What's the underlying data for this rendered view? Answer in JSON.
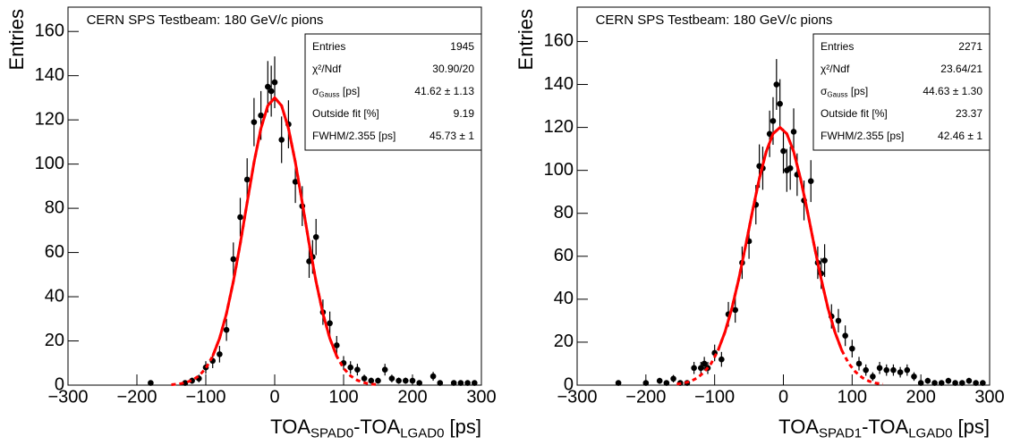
{
  "chart_data": [
    {
      "type": "scatter",
      "title": "CERN SPS Testbeam: 180 GeV/c pions",
      "xlabel": [
        "TOA",
        "SPAD0",
        "-TOA",
        "LGAD0",
        " [ps]"
      ],
      "ylabel": "Entries",
      "xlim": [
        -300,
        300
      ],
      "ylim": [
        0,
        171
      ],
      "xticks": [
        {
          "value": -300,
          "label": "−300"
        },
        {
          "value": -200,
          "label": "−200"
        },
        {
          "value": -100,
          "label": "−100"
        },
        0,
        100,
        200,
        300
      ],
      "yticks": [
        0,
        20,
        40,
        60,
        80,
        100,
        120,
        140,
        160
      ],
      "series": [
        {
          "type": "scatter",
          "color": "#000000",
          "x": [
            -180,
            -130,
            -120,
            -110,
            -100,
            -90,
            -80,
            -70,
            -60,
            -50,
            -40,
            -30,
            -20,
            -10,
            -5,
            0,
            10,
            20,
            30,
            40,
            50,
            55,
            60,
            70,
            80,
            90,
            100,
            110,
            120,
            130,
            140,
            150,
            160,
            170,
            180,
            190,
            200,
            210,
            230,
            240,
            260,
            270,
            280,
            290
          ],
          "values": [
            1,
            1,
            2,
            3,
            8,
            11,
            14,
            25,
            57,
            76,
            93,
            119,
            122,
            135,
            133,
            137,
            111,
            118,
            92,
            81,
            56,
            58,
            67,
            33,
            28,
            18,
            10,
            8,
            7,
            3,
            2,
            2,
            7,
            3,
            2,
            2,
            2,
            1,
            4,
            1,
            1,
            1,
            1,
            1
          ]
        },
        {
          "type": "line",
          "color": "#ff0000",
          "style": "dashed",
          "x": [
            -150,
            -140,
            -130,
            -120,
            -110,
            -100,
            -90,
            -80,
            -70,
            -60,
            -50,
            -40,
            -30,
            -20,
            -10,
            0,
            10,
            20,
            30,
            40,
            50,
            60,
            70,
            80,
            90,
            100,
            110,
            120,
            130,
            140,
            150
          ],
          "values": [
            0.2,
            0.5,
            1.1,
            2.2,
            4.2,
            7.6,
            13.1,
            21.2,
            32.4,
            46.9,
            64.0,
            82.6,
            100.8,
            116.1,
            126.4,
            130,
            126.4,
            116.1,
            100.8,
            82.6,
            64.0,
            46.9,
            32.4,
            21.2,
            13.1,
            7.6,
            4.2,
            2.2,
            1.1,
            0.5,
            0.2
          ]
        },
        {
          "type": "line",
          "color": "#ff0000",
          "style": "solid",
          "x": [
            -90,
            -80,
            -70,
            -60,
            -50,
            -40,
            -30,
            -20,
            -10,
            0,
            10,
            20,
            30,
            40,
            50,
            60,
            70,
            80,
            90
          ],
          "values": [
            13.1,
            21.2,
            32.4,
            46.9,
            64.0,
            82.6,
            100.8,
            116.1,
            126.4,
            130,
            126.4,
            116.1,
            100.8,
            82.6,
            64.0,
            46.9,
            32.4,
            21.2,
            13.1
          ]
        }
      ],
      "stats": [
        {
          "label": "Entries",
          "value": 1945
        },
        {
          "label": "χ²/Ndf",
          "value": "30.90/20"
        },
        {
          "label": [
            "σ",
            "Gauss",
            " [ps]"
          ],
          "value": "41.62 ± 1.13"
        },
        {
          "label": "Outside fit [%]",
          "value": 9.19
        },
        {
          "label": "FWHM/2.355 [ps]",
          "value": "45.73 ± 1"
        }
      ]
    },
    {
      "type": "scatter",
      "title": "CERN SPS Testbeam: 180 GeV/c pions",
      "xlabel": [
        "TOA",
        "SPAD1",
        "-TOA",
        "LGAD0",
        " [ps]"
      ],
      "ylabel": "Entries",
      "xlim": [
        -300,
        300
      ],
      "ylim": [
        0,
        176
      ],
      "xticks": [
        {
          "value": -300,
          "label": "−300"
        },
        {
          "value": -200,
          "label": "−200"
        },
        {
          "value": -100,
          "label": "−100"
        },
        0,
        100,
        200,
        300
      ],
      "yticks": [
        0,
        20,
        40,
        60,
        80,
        100,
        120,
        140,
        160
      ],
      "series": [
        {
          "type": "scatter",
          "color": "#000000",
          "x": [
            -240,
            -200,
            -180,
            -170,
            -160,
            -150,
            -140,
            -130,
            -120,
            -115,
            -110,
            -100,
            -90,
            -80,
            -70,
            -60,
            -50,
            -40,
            -35,
            -30,
            -20,
            -15,
            -10,
            -5,
            0,
            5,
            10,
            15,
            20,
            30,
            40,
            50,
            55,
            60,
            70,
            80,
            90,
            100,
            110,
            120,
            130,
            140,
            150,
            160,
            170,
            180,
            190,
            200,
            210,
            220,
            230,
            240,
            250,
            260,
            270,
            280,
            290
          ],
          "values": [
            1,
            1,
            2,
            1,
            3,
            1,
            1,
            8,
            8,
            10,
            8,
            15,
            12,
            33,
            35,
            57,
            67,
            84,
            102,
            101,
            117,
            123,
            140,
            131,
            109,
            100,
            101,
            118,
            98,
            86,
            95,
            57,
            52,
            58,
            32,
            30,
            23,
            17,
            10,
            7,
            4,
            8,
            7,
            7,
            6,
            7,
            4,
            1,
            2,
            1,
            1,
            2,
            1,
            1,
            2,
            1,
            1
          ]
        },
        {
          "type": "line",
          "color": "#ff0000",
          "style": "dashed",
          "x": [
            -155,
            -145,
            -135,
            -125,
            -115,
            -105,
            -95,
            -85,
            -75,
            -65,
            -55,
            -45,
            -35,
            -25,
            -15,
            -5,
            5,
            15,
            25,
            35,
            45,
            55,
            65,
            75,
            85,
            95,
            105,
            115,
            125,
            135,
            145
          ],
          "values": [
            0.5,
            0.9,
            1.8,
            3.4,
            6.1,
            10.1,
            16.2,
            24.7,
            35.7,
            49.3,
            64.7,
            80.9,
            96.1,
            108.7,
            117.1,
            120,
            117.1,
            108.7,
            96.1,
            80.9,
            64.7,
            49.3,
            35.7,
            24.7,
            16.2,
            10.1,
            6.1,
            3.4,
            1.8,
            0.9,
            0.5
          ]
        },
        {
          "type": "line",
          "color": "#ff0000",
          "style": "solid",
          "x": [
            -95,
            -85,
            -75,
            -65,
            -55,
            -45,
            -35,
            -25,
            -15,
            -5,
            5,
            15,
            25,
            35,
            45,
            55,
            65,
            75,
            85
          ],
          "values": [
            16.2,
            24.7,
            35.7,
            49.3,
            64.7,
            80.9,
            96.1,
            108.7,
            117.1,
            120,
            117.1,
            108.7,
            96.1,
            80.9,
            64.7,
            49.3,
            35.7,
            24.7,
            16.2
          ]
        }
      ],
      "stats": [
        {
          "label": "Entries",
          "value": 2271
        },
        {
          "label": "χ²/Ndf",
          "value": "23.64/21"
        },
        {
          "label": [
            "σ",
            "Gauss",
            " [ps]"
          ],
          "value": "44.63 ± 1.30"
        },
        {
          "label": "Outside fit [%]",
          "value": 23.37
        },
        {
          "label": "FWHM/2.355 [ps]",
          "value": "42.46 ± 1"
        }
      ]
    }
  ]
}
